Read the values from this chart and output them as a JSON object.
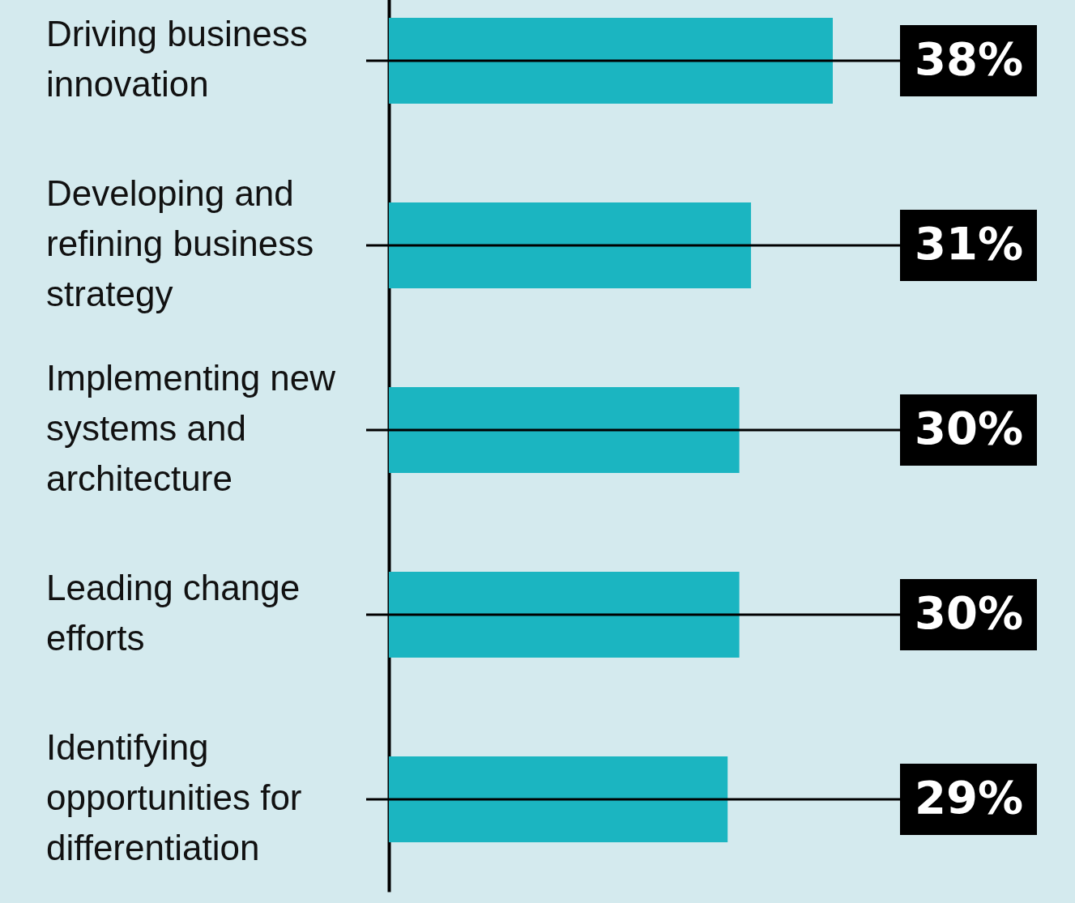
{
  "chart_data": {
    "type": "bar",
    "orientation": "horizontal",
    "categories": [
      "Driving business innovation",
      "Developing and refining business strategy",
      "Implementing new systems and architecture",
      "Leading change efforts",
      "Identifying opportunities for differentiation"
    ],
    "values": [
      38,
      31,
      30,
      30,
      29
    ],
    "value_labels": [
      "38%",
      "31%",
      "30%",
      "30%",
      "29%"
    ],
    "color": "#1bb5c1"
  }
}
